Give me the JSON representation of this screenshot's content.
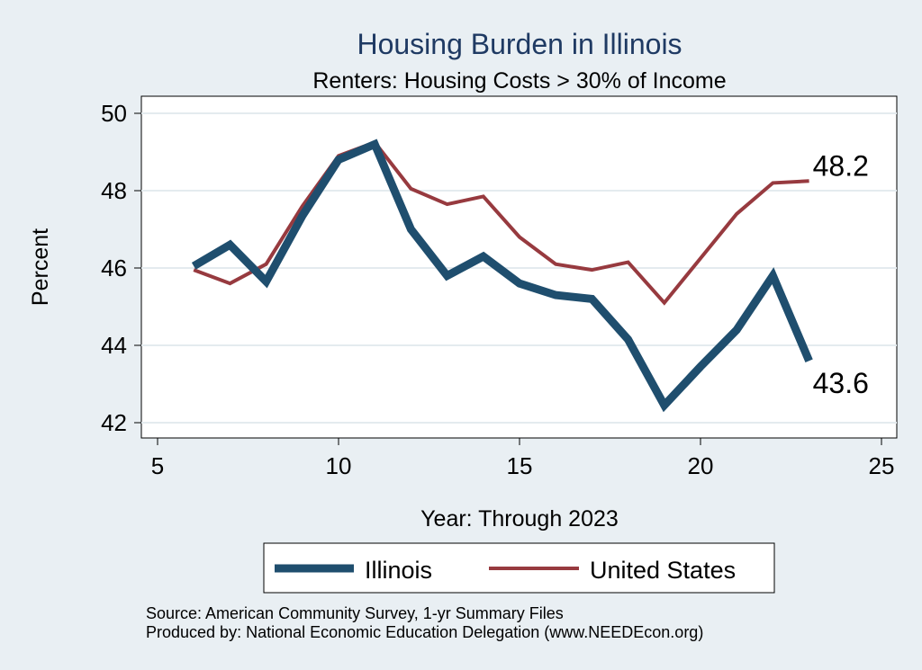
{
  "chart_data": {
    "type": "line",
    "title": "Housing Burden in Illinois",
    "subtitle": "Renters: Housing Costs > 30% of Income",
    "xlabel": "Year: Through 2023",
    "ylabel": "Percent",
    "xlim": [
      5,
      25
    ],
    "ylim": [
      42,
      50
    ],
    "xticks": [
      "5",
      "10",
      "15",
      "20",
      "25"
    ],
    "yticks": [
      "42",
      "44",
      "46",
      "48",
      "50"
    ],
    "grid": true,
    "legend_position": "bottom",
    "x": [
      6,
      7,
      8,
      9,
      10,
      11,
      12,
      13,
      14,
      15,
      16,
      17,
      18,
      19,
      20,
      21,
      22,
      23
    ],
    "series": [
      {
        "name": "Illinois",
        "color": "#1f4e6e",
        "values": [
          46.05,
          46.6,
          45.65,
          47.35,
          48.8,
          49.2,
          47.0,
          45.8,
          46.3,
          45.6,
          45.3,
          45.2,
          44.15,
          42.45,
          43.45,
          44.4,
          45.8,
          43.6
        ],
        "end_label": "43.6"
      },
      {
        "name": "United States",
        "color": "#973a3f",
        "values": [
          45.95,
          45.6,
          46.1,
          47.6,
          48.9,
          49.25,
          48.05,
          47.65,
          47.85,
          46.8,
          46.1,
          45.95,
          46.15,
          45.1,
          46.25,
          47.4,
          48.2,
          48.25
        ],
        "end_label": "48.2"
      }
    ]
  },
  "source_text": "Source: American Community Survey, 1-yr Summary Files",
  "produced_text": "Produced by: National Economic Education Delegation (www.NEEDEcon.org)"
}
